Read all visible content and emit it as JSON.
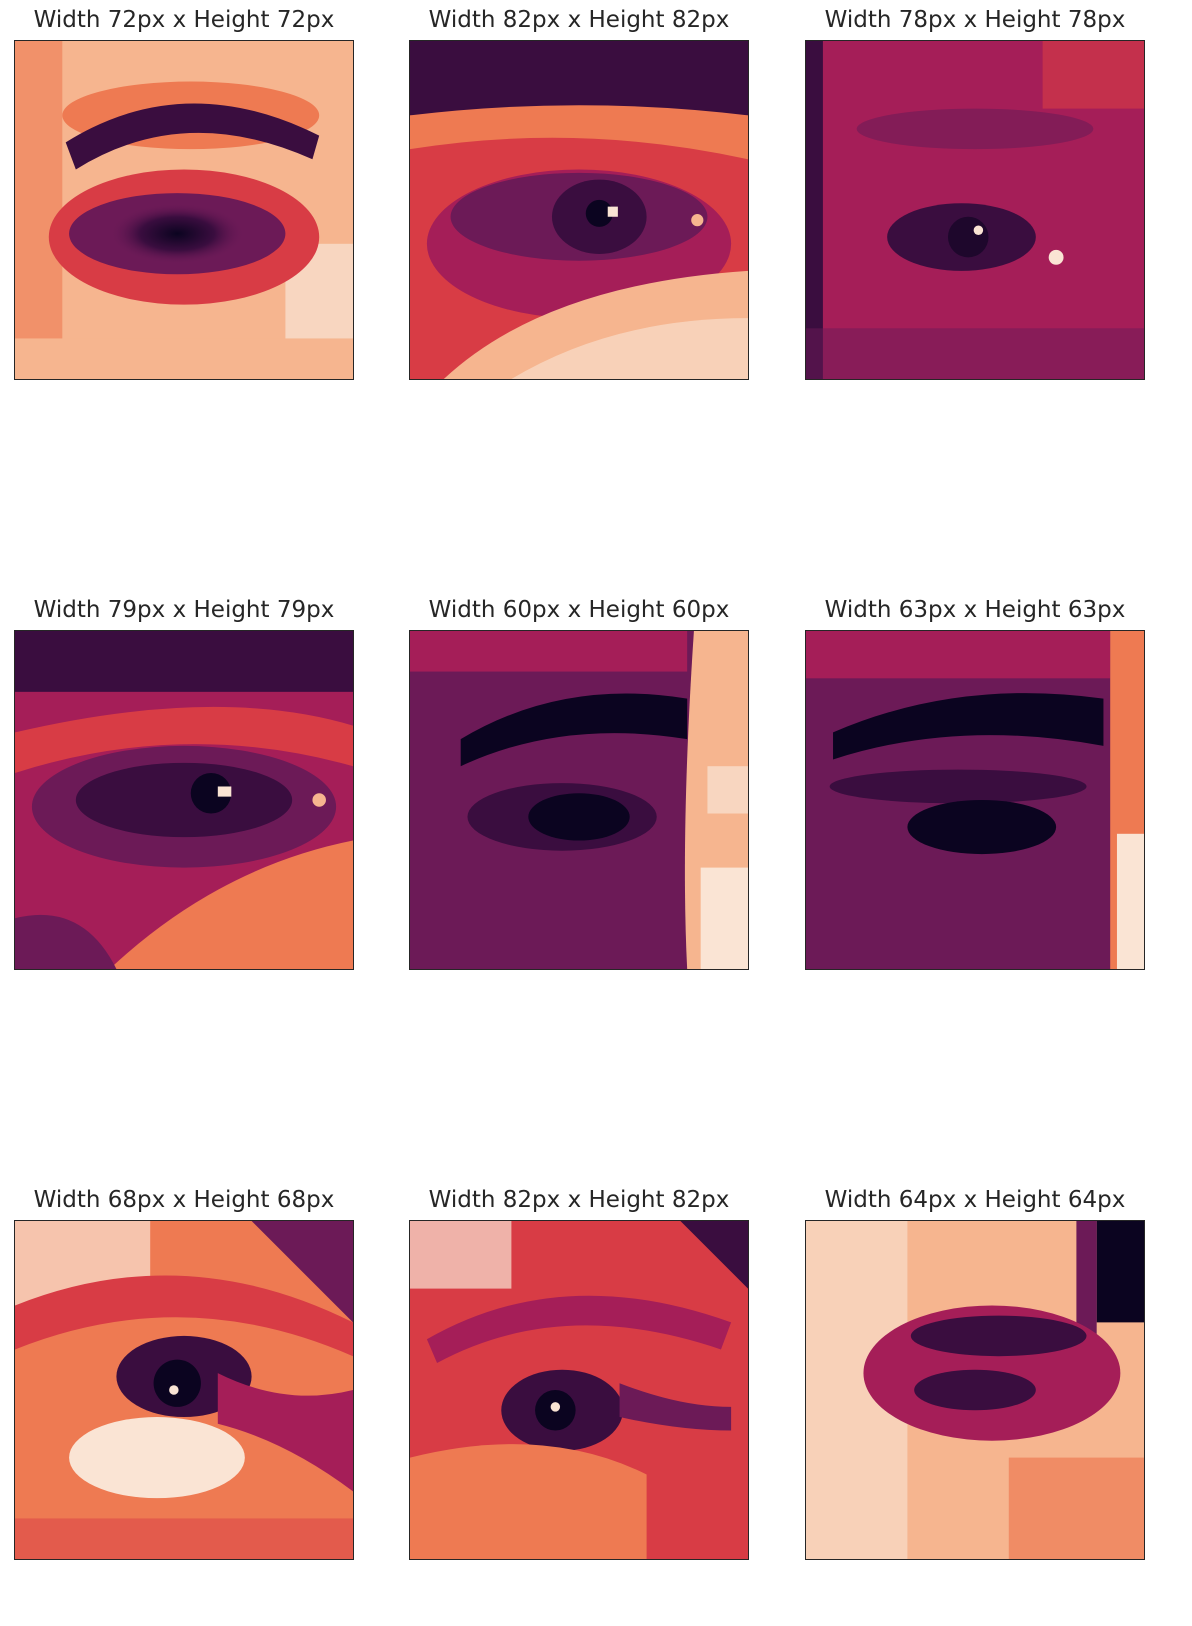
{
  "figure": {
    "panels": [
      {
        "title": "Width 72px x Height 72px",
        "kind": "eye-crop",
        "tone": "bright"
      },
      {
        "title": "Width 82px x Height 82px",
        "kind": "eye-crop",
        "tone": "medium"
      },
      {
        "title": "Width 78px x Height 78px",
        "kind": "eye-crop",
        "tone": "dark"
      },
      {
        "title": "Width 79px x Height 79px",
        "kind": "eye-crop",
        "tone": "medium"
      },
      {
        "title": "Width 60px x Height 60px",
        "kind": "eye-crop",
        "tone": "dark"
      },
      {
        "title": "Width 63px x Height 63px",
        "kind": "eye-crop",
        "tone": "dark"
      },
      {
        "title": "Width 68px x Height 68px",
        "kind": "eye-crop",
        "tone": "bright"
      },
      {
        "title": "Width 82px x Height 82px",
        "kind": "eye-crop",
        "tone": "medium"
      },
      {
        "title": "Width 64px x Height 64px",
        "kind": "eye-crop",
        "tone": "bright"
      }
    ],
    "colormap": [
      "#0b0420",
      "#3a0d3f",
      "#6c1a57",
      "#a51e58",
      "#d83c45",
      "#ee7a52",
      "#f6b58f",
      "#fae4d4"
    ]
  }
}
